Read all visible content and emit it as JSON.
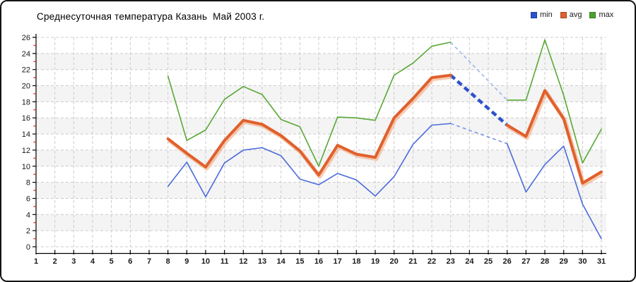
{
  "title": "Среднесуточная температура Казань  Май 2003 г.",
  "legend": [
    {
      "label": "min",
      "color": "#2a52d0"
    },
    {
      "label": "avg",
      "color": "#e06030"
    },
    {
      "label": "max",
      "color": "#4aa32e"
    }
  ],
  "chart_data": {
    "type": "line",
    "title": "Среднесуточная температура Казань  Май 2003 г.",
    "xlabel": "",
    "ylabel": "",
    "xlim": [
      1,
      31
    ],
    "ylim": [
      0,
      26
    ],
    "x_ticks": [
      1,
      2,
      3,
      4,
      5,
      6,
      7,
      8,
      9,
      10,
      11,
      12,
      13,
      14,
      15,
      16,
      17,
      18,
      19,
      20,
      21,
      22,
      23,
      24,
      25,
      26,
      27,
      28,
      29,
      30,
      31
    ],
    "y_ticks": [
      0,
      2,
      4,
      6,
      8,
      10,
      12,
      14,
      16,
      18,
      20,
      22,
      24,
      26
    ],
    "grid": "dashed",
    "band_color": "#f4f4f4",
    "grid_color": "#cccccc",
    "axis_color": "#000000",
    "minor_tick_color": "#cc3333",
    "legend_position": "top-right",
    "note_gap": "no data for days 1-7; days 24-25 bridged by blue dashed interpolation segments",
    "days": [
      8,
      9,
      10,
      11,
      12,
      13,
      14,
      15,
      16,
      17,
      18,
      19,
      20,
      21,
      22,
      23,
      26,
      27,
      28,
      29,
      30,
      31
    ],
    "series": [
      {
        "name": "min",
        "color": "#4b6bdb",
        "width": 1.6,
        "gap_color": "#7b96e4",
        "gap_width": 1.6,
        "gap_dash": "5 4",
        "values": [
          7.5,
          10.5,
          6.2,
          10.4,
          12.0,
          12.3,
          11.3,
          8.4,
          7.7,
          9.1,
          8.3,
          6.3,
          8.7,
          12.7,
          15.1,
          15.3,
          12.8,
          6.8,
          10.2,
          12.5,
          5.3,
          1.0
        ]
      },
      {
        "name": "avg",
        "color": "#e0602c",
        "width": 4,
        "glow": "#f2a173",
        "gap_color": "#2f52cc",
        "gap_width": 4.5,
        "gap_dash": "8 5",
        "values": [
          13.4,
          11.6,
          9.9,
          13.2,
          15.7,
          15.2,
          13.8,
          11.9,
          8.9,
          12.6,
          11.5,
          11.1,
          16.0,
          18.4,
          21.0,
          21.3,
          15.1,
          13.7,
          19.4,
          15.9,
          7.9,
          9.3
        ]
      },
      {
        "name": "max",
        "color": "#59a835",
        "width": 1.6,
        "gap_color": "#a2b4ea",
        "gap_width": 1.6,
        "gap_dash": "5 4",
        "values": [
          21.2,
          13.2,
          14.5,
          18.3,
          19.9,
          18.9,
          15.8,
          14.9,
          10.0,
          16.1,
          16.0,
          15.7,
          21.3,
          22.8,
          24.9,
          25.4,
          18.2,
          18.2,
          25.7,
          18.8,
          10.4,
          14.6
        ]
      }
    ]
  }
}
